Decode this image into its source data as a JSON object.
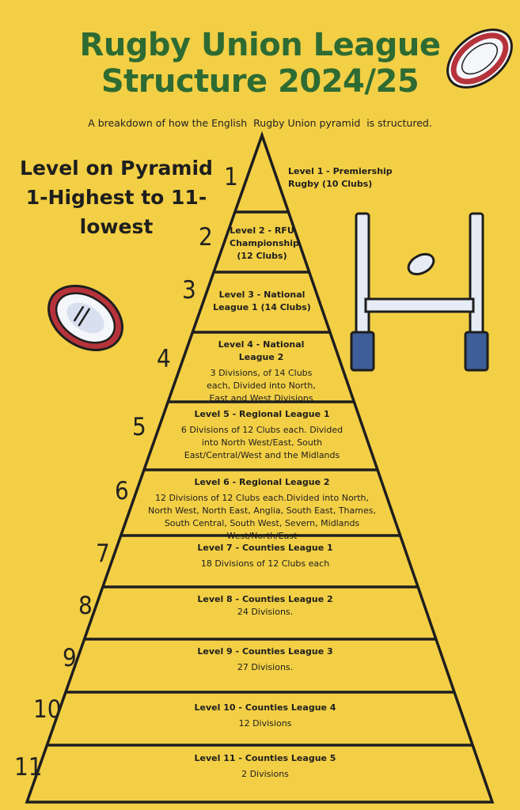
{
  "header": {
    "title_line1": "Rugby Union League",
    "title_line2": "Structure 2024/25",
    "subtitle": "A breakdown of how the English  Rugby Union pyramid  is structured."
  },
  "legend": {
    "line1": "Level on Pyramid",
    "line2": "1-Highest to 11-",
    "line3": "lowest"
  },
  "colors": {
    "background": "#F3CF45",
    "title": "#2E6B33",
    "outline": "#1E1E1E",
    "ball_red": "#B6333B",
    "post_blue": "#3D5E98",
    "post_grey": "#E6ECF5"
  },
  "icons": [
    "rugby-ball-icon",
    "rugby-ball-icon",
    "rugby-goalposts-icon"
  ],
  "levels": [
    {
      "number": "1",
      "heading": "Level 1 - Premiership Rugby (10 Clubs)",
      "description": ""
    },
    {
      "number": "2",
      "heading": "Level 2 - RFU Championship (12 Clubs)",
      "description": ""
    },
    {
      "number": "3",
      "heading": "Level 3 - National League 1 (14 Clubs)",
      "description": ""
    },
    {
      "number": "4",
      "heading": "Level 4 - National League 2",
      "description": "3 Divisions, of 14 Clubs each, Divided into North, East and West Divisions"
    },
    {
      "number": "5",
      "heading": "Level 5 - Regional League 1",
      "description": "6 Divisions of 12 Clubs each. Divided into North West/East, South East/Central/West and the Midlands"
    },
    {
      "number": "6",
      "heading": "Level 6 - Regional League 2",
      "description": "12 Divisions of 12 Clubs each.Divided into North, North West, North East, Anglia, South East, Thames, South Central, South West, Severn, Midlands West/North/East"
    },
    {
      "number": "7",
      "heading": "Level 7 - Counties League 1",
      "description": "18 Divisions of 12 Clubs each"
    },
    {
      "number": "8",
      "heading": "Level 8 - Counties League 2",
      "description": "24 Divisions."
    },
    {
      "number": "9",
      "heading": "Level 9 - Counties League 3",
      "description": "27 Divisions."
    },
    {
      "number": "10",
      "heading": "Level 10 - Counties League 4",
      "description": "12 Divisions"
    },
    {
      "number": "11",
      "heading": "Level 11 - Counties League 5",
      "description": "2 Divisions"
    }
  ]
}
